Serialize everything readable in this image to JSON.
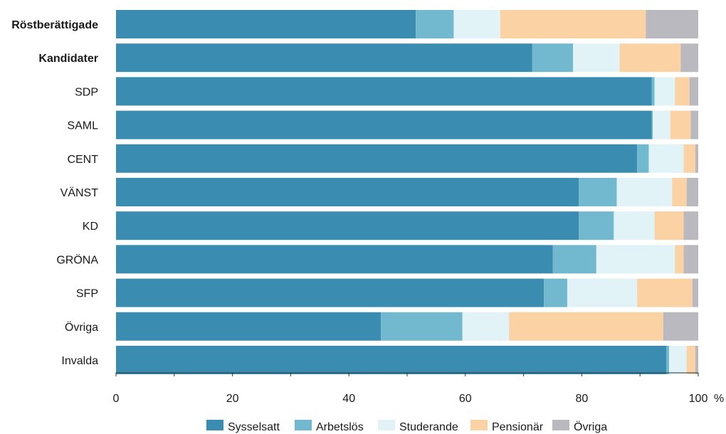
{
  "chart_data": {
    "type": "bar",
    "orientation": "horizontal",
    "stacked": true,
    "categories": [
      "Röstberättigade",
      "Kandidater",
      "SDP",
      "SAML",
      "CENT",
      "VÄNST",
      "KD",
      "GRÖNA",
      "SFP",
      "Övriga",
      "Invalda"
    ],
    "bold_categories": [
      "Röstberättigade",
      "Kandidater"
    ],
    "series": [
      {
        "name": "Sysselsatt",
        "color": "#3a8db0",
        "values": [
          51.5,
          71.5,
          92,
          92,
          89.5,
          79.5,
          79.5,
          75,
          73.5,
          45.5,
          94.5
        ]
      },
      {
        "name": "Arbetslös",
        "color": "#72b9d0",
        "values": [
          6.5,
          7,
          0.5,
          0.2,
          2,
          6.5,
          6,
          7.5,
          4,
          14,
          0.5
        ]
      },
      {
        "name": "Studerande",
        "color": "#e2f3f8",
        "values": [
          8,
          8,
          3.5,
          3,
          6,
          9.5,
          7,
          13.5,
          12,
          8,
          3
        ]
      },
      {
        "name": "Pensionär",
        "color": "#fad2a4",
        "values": [
          25,
          10.5,
          2.5,
          3.5,
          2,
          2.5,
          5,
          1.5,
          9.5,
          26.5,
          1.5
        ]
      },
      {
        "name": "Övriga",
        "color": "#b9b9bf",
        "values": [
          9,
          3,
          1.5,
          1.3,
          0.5,
          2,
          2.5,
          2.5,
          1,
          6,
          0.5
        ]
      }
    ],
    "x_ticks": [
      0,
      20,
      40,
      60,
      80,
      100
    ],
    "x_unit": "%",
    "xlim": [
      0,
      100
    ],
    "grid": false,
    "legend_position": "bottom-center"
  }
}
